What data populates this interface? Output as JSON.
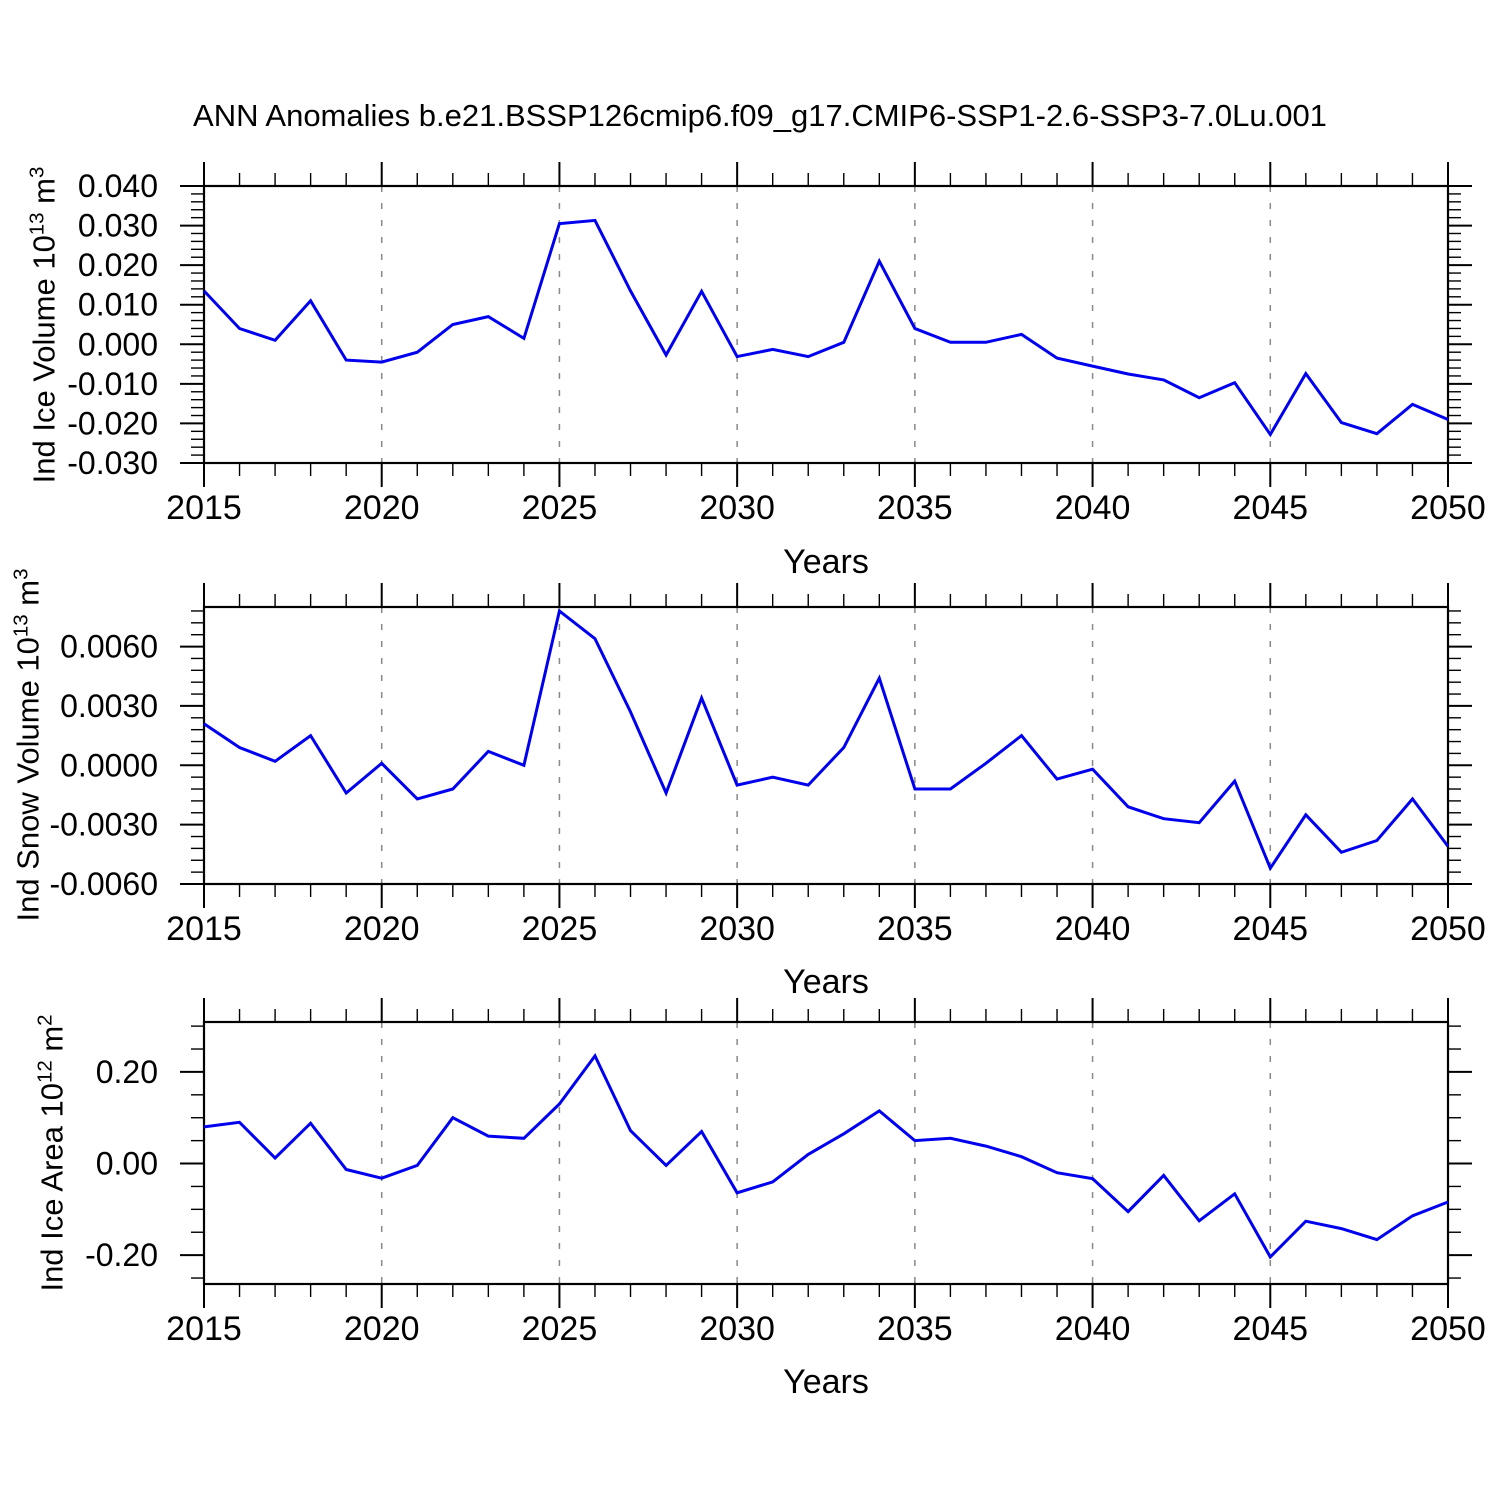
{
  "header": {
    "title": "ANN Anomalies b.e21.BSSP126cmip6.f09_g17.CMIP6-SSP1-2.6-SSP3-7.0Lu.001"
  },
  "line_color": "#0000EE",
  "grid_color": "#888888",
  "frame_color": "#000000",
  "chart_data": [
    {
      "type": "line",
      "ylabel_prefix": "Ind Ice Volume 10",
      "ylabel_sup1": "13",
      "ylabel_mid": " m",
      "ylabel_sup2": "3",
      "xlabel": "Years",
      "x": [
        2015,
        2016,
        2017,
        2018,
        2019,
        2020,
        2021,
        2022,
        2023,
        2024,
        2025,
        2026,
        2027,
        2028,
        2029,
        2030,
        2031,
        2032,
        2033,
        2034,
        2035,
        2036,
        2037,
        2038,
        2039,
        2040,
        2041,
        2042,
        2043,
        2044,
        2045,
        2046,
        2047,
        2048,
        2049,
        2050
      ],
      "values": [
        0.0135,
        0.004,
        0.001,
        0.011,
        -0.004,
        -0.0045,
        -0.002,
        0.005,
        0.007,
        0.0015,
        0.0305,
        0.0313,
        0.0135,
        -0.0027,
        0.0134,
        -0.0031,
        -0.0013,
        -0.0031,
        0.0005,
        0.021,
        0.004,
        0.0005,
        0.0005,
        0.0025,
        -0.0035,
        -0.0055,
        -0.0075,
        -0.009,
        -0.0135,
        -0.0097,
        -0.0228,
        -0.0074,
        -0.0198,
        -0.0226,
        -0.0152,
        -0.019
      ],
      "ylim": [
        -0.03,
        0.04
      ],
      "ytick_values": [
        0.04,
        0.03,
        0.02,
        0.01,
        0.0,
        -0.01,
        -0.02,
        -0.03
      ],
      "ytick_labels": [
        "0.040",
        "0.030",
        "0.020",
        "0.010",
        "0.000",
        "-0.010",
        "-0.020",
        "-0.030"
      ],
      "ytick_minor_step": 0.002,
      "xtick_values": [
        2015,
        2020,
        2025,
        2030,
        2035,
        2040,
        2045,
        2050
      ],
      "xtick_labels": [
        "2015",
        "2020",
        "2025",
        "2030",
        "2035",
        "2040",
        "2045",
        "2050"
      ],
      "x_minor_step": 1,
      "grid_years": [
        2020,
        2025,
        2030,
        2035,
        2040,
        2045
      ],
      "grid": "vertical-dashed",
      "legend": "none"
    },
    {
      "type": "line",
      "ylabel_prefix": "Ind Snow Volume 10",
      "ylabel_sup1": "13",
      "ylabel_mid": " m",
      "ylabel_sup2": "3",
      "xlabel": "Years",
      "x": [
        2015,
        2016,
        2017,
        2018,
        2019,
        2020,
        2021,
        2022,
        2023,
        2024,
        2025,
        2026,
        2027,
        2028,
        2029,
        2030,
        2031,
        2032,
        2033,
        2034,
        2035,
        2036,
        2037,
        2038,
        2039,
        2040,
        2041,
        2042,
        2043,
        2044,
        2045,
        2046,
        2047,
        2048,
        2049,
        2050
      ],
      "values": [
        0.0021,
        0.0009,
        0.0002,
        0.0015,
        -0.0014,
        0.0001,
        -0.0017,
        -0.0012,
        0.0007,
        0.0,
        0.0078,
        0.0064,
        0.0027,
        -0.0014,
        0.0034,
        -0.001,
        -0.0006,
        -0.001,
        0.0009,
        0.0044,
        -0.0012,
        -0.0012,
        0.0001,
        0.0015,
        -0.0007,
        -0.0002,
        -0.0021,
        -0.0027,
        -0.0029,
        -0.0008,
        -0.0052,
        -0.0025,
        -0.0044,
        -0.0038,
        -0.0017,
        -0.0041
      ],
      "ylim": [
        -0.006,
        0.008
      ],
      "ytick_values": [
        0.006,
        0.003,
        0.0,
        -0.003,
        -0.006
      ],
      "ytick_labels": [
        "0.0060",
        "0.0030",
        "0.0000",
        "-0.0030",
        "-0.0060"
      ],
      "ytick_minor_step": 0.0006,
      "xtick_values": [
        2015,
        2020,
        2025,
        2030,
        2035,
        2040,
        2045,
        2050
      ],
      "xtick_labels": [
        "2015",
        "2020",
        "2025",
        "2030",
        "2035",
        "2040",
        "2045",
        "2050"
      ],
      "x_minor_step": 1,
      "grid_years": [
        2020,
        2025,
        2030,
        2035,
        2040,
        2045
      ],
      "grid": "vertical-dashed",
      "legend": "none"
    },
    {
      "type": "line",
      "ylabel_prefix": "Ind Ice Area 10",
      "ylabel_sup1": "12",
      "ylabel_mid": " m",
      "ylabel_sup2": "2",
      "xlabel": "Years",
      "x": [
        2015,
        2016,
        2017,
        2018,
        2019,
        2020,
        2021,
        2022,
        2023,
        2024,
        2025,
        2026,
        2027,
        2028,
        2029,
        2030,
        2031,
        2032,
        2033,
        2034,
        2035,
        2036,
        2037,
        2038,
        2039,
        2040,
        2041,
        2042,
        2043,
        2044,
        2045,
        2046,
        2047,
        2048,
        2049,
        2050
      ],
      "values": [
        0.08,
        0.09,
        0.012,
        0.088,
        -0.013,
        -0.032,
        -0.004,
        0.1,
        0.06,
        0.055,
        0.13,
        0.235,
        0.072,
        -0.004,
        0.07,
        -0.064,
        -0.04,
        0.02,
        0.065,
        0.115,
        0.05,
        0.055,
        0.038,
        0.015,
        -0.02,
        -0.033,
        -0.105,
        -0.026,
        -0.125,
        -0.066,
        -0.204,
        -0.126,
        -0.142,
        -0.166,
        -0.114,
        -0.084
      ],
      "ylim": [
        -0.263,
        0.309
      ],
      "ytick_values": [
        0.2,
        0.0,
        -0.2
      ],
      "ytick_labels": [
        "0.20",
        "0.00",
        "-0.20"
      ],
      "ytick_minor_step": 0.05,
      "xtick_values": [
        2015,
        2020,
        2025,
        2030,
        2035,
        2040,
        2045,
        2050
      ],
      "xtick_labels": [
        "2015",
        "2020",
        "2025",
        "2030",
        "2035",
        "2040",
        "2045",
        "2050"
      ],
      "x_minor_step": 1,
      "grid_years": [
        2020,
        2025,
        2030,
        2035,
        2040,
        2045
      ],
      "grid": "vertical-dashed",
      "legend": "none"
    }
  ]
}
